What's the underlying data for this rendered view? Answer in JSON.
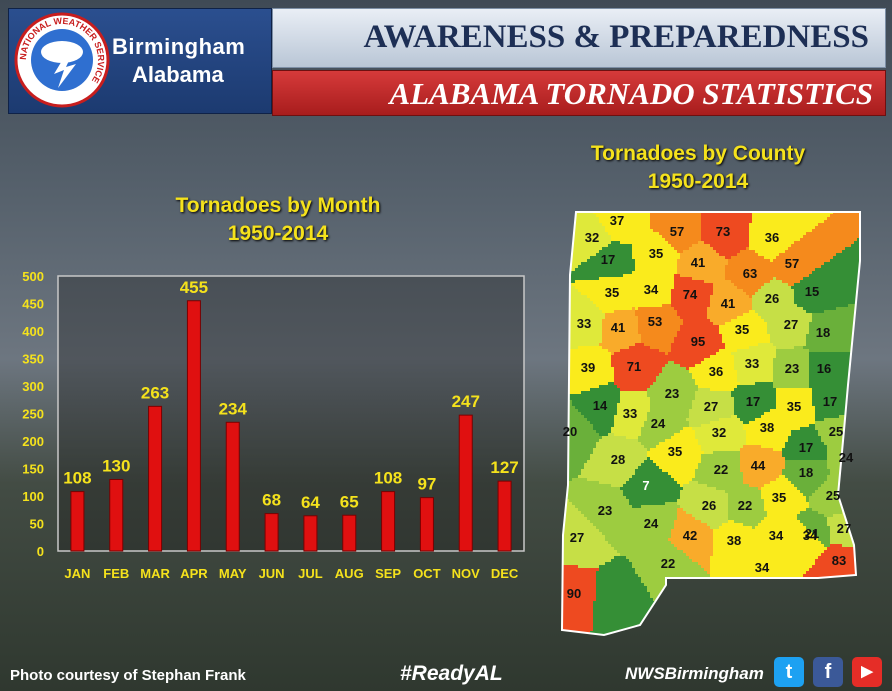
{
  "header": {
    "office_city": "Birmingham",
    "office_state": "Alabama",
    "banner_top": "AWARENESS & PREPAREDNESS",
    "banner_bottom": "ALABAMA TORNADO STATISTICS",
    "seal_text": "NATIONAL WEATHER SERVICE"
  },
  "chart_data": [
    {
      "type": "bar",
      "title": "Tornadoes by Month",
      "subtitle": "1950-2014",
      "categories": [
        "JAN",
        "FEB",
        "MAR",
        "APR",
        "MAY",
        "JUN",
        "JUL",
        "AUG",
        "SEP",
        "OCT",
        "NOV",
        "DEC"
      ],
      "values": [
        108,
        130,
        263,
        455,
        234,
        68,
        64,
        65,
        108,
        97,
        247,
        127
      ],
      "ylim": [
        0,
        500
      ],
      "yticks": [
        0,
        50,
        100,
        150,
        200,
        250,
        300,
        350,
        400,
        450,
        500
      ],
      "grid": false,
      "bar_color": "#e01010",
      "label_color": "#f5e21c"
    },
    {
      "type": "choropleth",
      "title": "Tornadoes by County",
      "subtitle": "1950-2014",
      "values": [
        37,
        57,
        73,
        32,
        36,
        35,
        41,
        63,
        57,
        17,
        35,
        34,
        74,
        41,
        26,
        15,
        33,
        41,
        53,
        35,
        27,
        18,
        95,
        39,
        71,
        33,
        36,
        23,
        16,
        14,
        23,
        27,
        17,
        35,
        17,
        20,
        33,
        24,
        38,
        25,
        32,
        28,
        35,
        22,
        44,
        17,
        24,
        18,
        7,
        26,
        22,
        35,
        25,
        34,
        23,
        24,
        42,
        38,
        34,
        21,
        27,
        27,
        22,
        34,
        83,
        90
      ]
    }
  ],
  "footer": {
    "photo_credit": "Photo courtesy of Stephan Frank",
    "hashtag": "#ReadyAL",
    "handle": "NWSBirmingham"
  },
  "social": {
    "twitter_glyph": "t",
    "facebook_glyph": "f",
    "youtube_glyph": "▶"
  },
  "colors": {
    "title_yellow": "#f5e21c",
    "banner_red": "#c72a2a",
    "banner_navy": "#1d2f55"
  }
}
